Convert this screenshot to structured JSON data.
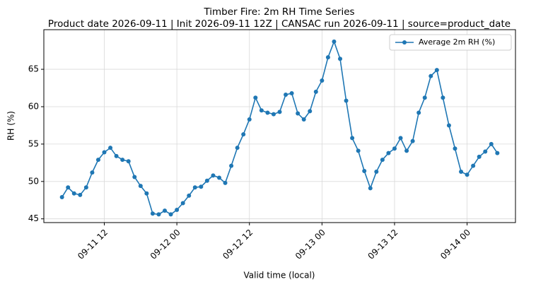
{
  "chart_data": {
    "type": "line",
    "title": "Timber Fire: 2m RH Time Series",
    "subtitle": "Product date 2026-09-11 | Init 2026-09-11 12Z | CANSAC run 2026-09-11 | source=product_date",
    "x_label": "Valid time (local)",
    "y_label": "RH (%)",
    "x": [
      "09-11 05",
      "09-11 06",
      "09-11 07",
      "09-11 08",
      "09-11 09",
      "09-11 10",
      "09-11 11",
      "09-11 12",
      "09-11 13",
      "09-11 14",
      "09-11 15",
      "09-11 16",
      "09-11 17",
      "09-11 18",
      "09-11 19",
      "09-11 20",
      "09-11 21",
      "09-11 22",
      "09-11 23",
      "09-12 00",
      "09-12 01",
      "09-12 02",
      "09-12 03",
      "09-12 04",
      "09-12 05",
      "09-12 06",
      "09-12 07",
      "09-12 08",
      "09-12 09",
      "09-12 10",
      "09-12 11",
      "09-12 12",
      "09-12 13",
      "09-12 14",
      "09-12 15",
      "09-12 16",
      "09-12 17",
      "09-12 18",
      "09-12 19",
      "09-12 20",
      "09-12 21",
      "09-12 22",
      "09-12 23",
      "09-13 00",
      "09-13 01",
      "09-13 02",
      "09-13 03",
      "09-13 04",
      "09-13 05",
      "09-13 06",
      "09-13 07",
      "09-13 08",
      "09-13 09",
      "09-13 10",
      "09-13 11",
      "09-13 12",
      "09-13 13",
      "09-13 14",
      "09-13 15",
      "09-13 16",
      "09-13 17",
      "09-13 18",
      "09-13 19",
      "09-13 20",
      "09-13 21",
      "09-13 22",
      "09-13 23",
      "09-14 00",
      "09-14 01",
      "09-14 02",
      "09-14 03",
      "09-14 04",
      "09-14 05"
    ],
    "series": [
      {
        "name": "Average 2m RH (%)",
        "color": "#1f77b4",
        "values": [
          47.9,
          49.2,
          48.4,
          48.2,
          49.2,
          51.2,
          52.9,
          53.9,
          54.5,
          53.4,
          52.9,
          52.7,
          50.6,
          49.4,
          48.4,
          45.7,
          45.6,
          46.1,
          45.6,
          46.2,
          47.1,
          48.1,
          49.2,
          49.3,
          50.1,
          50.8,
          50.5,
          49.8,
          52.1,
          54.5,
          56.3,
          58.3,
          61.2,
          59.5,
          59.2,
          59.0,
          59.3,
          61.6,
          61.8,
          59.1,
          58.3,
          59.4,
          62.0,
          63.5,
          66.6,
          68.7,
          66.4,
          60.8,
          55.8,
          54.1,
          51.4,
          49.1,
          51.3,
          52.9,
          53.8,
          54.4,
          55.8,
          54.1,
          55.4,
          59.2,
          61.2,
          64.1,
          64.9,
          61.2,
          57.5,
          54.4,
          51.3,
          50.9,
          52.1,
          53.3,
          54.0,
          55.0,
          53.8
        ]
      }
    ],
    "xlim": [
      "09-11 02",
      "09-14 08"
    ],
    "xticks": [
      "09-11 12",
      "09-12 00",
      "09-12 12",
      "09-13 00",
      "09-13 12",
      "09-14 00"
    ],
    "ylim": [
      44.5,
      70.3
    ],
    "yticks": [
      45,
      50,
      55,
      60,
      65
    ],
    "grid": true,
    "legend": "upper right"
  }
}
